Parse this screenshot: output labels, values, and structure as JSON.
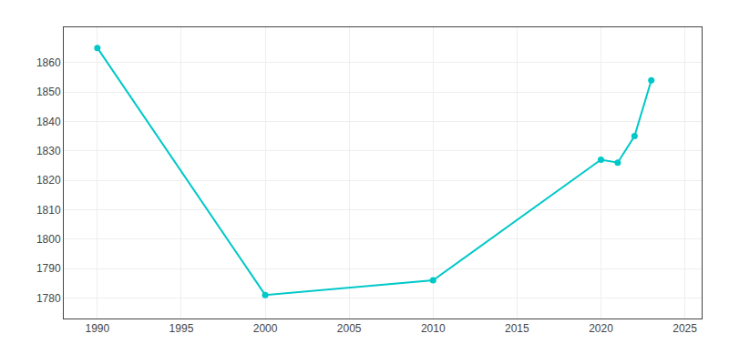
{
  "chart_data": {
    "type": "line",
    "x": [
      1990,
      2000,
      2010,
      2020,
      2021,
      2022,
      2023
    ],
    "values": [
      1865,
      1781,
      1786,
      1827,
      1826,
      1835,
      1854
    ],
    "color": "#00c8c8",
    "marker": "circle",
    "line_style": "solid",
    "xlim": [
      1988,
      2026
    ],
    "ylim": [
      1773,
      1872
    ],
    "xticks": [
      1990,
      1995,
      2000,
      2005,
      2010,
      2015,
      2020,
      2025
    ],
    "yticks": [
      1780,
      1790,
      1800,
      1810,
      1820,
      1830,
      1840,
      1850,
      1860
    ],
    "grid": true
  }
}
